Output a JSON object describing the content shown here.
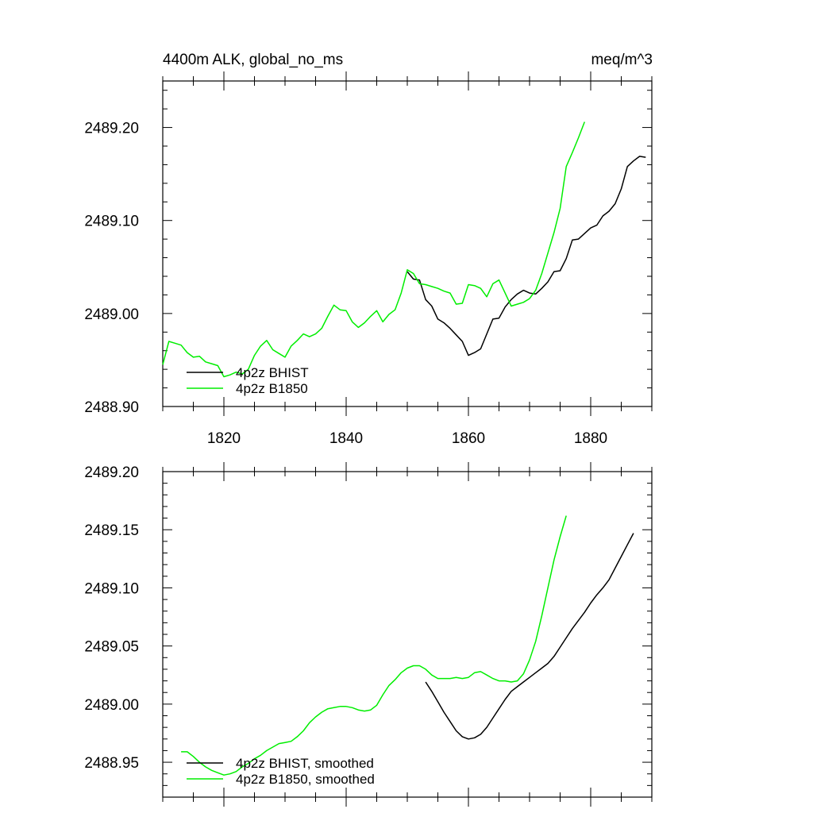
{
  "chart_data": [
    {
      "type": "line",
      "title_left": "4400m ALK, global_no_ms",
      "title_right": "meq/m^3",
      "xlabel": "",
      "ylabel": "",
      "xlim": [
        1810,
        1890
      ],
      "ylim": [
        2488.9,
        2489.25
      ],
      "x_ticks": [
        1820,
        1840,
        1860,
        1880
      ],
      "x_tick_labels": [
        "1820",
        "1840",
        "1860",
        "1880"
      ],
      "y_ticks": [
        2488.9,
        2489.0,
        2489.1,
        2489.2
      ],
      "y_tick_labels": [
        "2488.90",
        "2489.00",
        "2489.10",
        "2489.20"
      ],
      "legend_placement": "bottom-left",
      "series": [
        {
          "name": "4p2z BHIST",
          "color": "#000000",
          "x": [
            1850,
            1851,
            1852,
            1853,
            1854,
            1855,
            1856,
            1857,
            1858,
            1859,
            1860,
            1861,
            1862,
            1863,
            1864,
            1865,
            1866,
            1867,
            1868,
            1869,
            1870,
            1871,
            1872,
            1873,
            1874,
            1875,
            1876,
            1877,
            1878,
            1879,
            1880,
            1881,
            1882,
            1883,
            1884,
            1885,
            1886,
            1887,
            1888,
            1889
          ],
          "values": [
            2489.045,
            2489.037,
            2489.036,
            2489.015,
            2489.008,
            2488.994,
            2488.99,
            2488.984,
            2488.977,
            2488.97,
            2488.955,
            2488.958,
            2488.962,
            2488.978,
            2488.994,
            2488.995,
            2489.007,
            2489.015,
            2489.021,
            2489.025,
            2489.022,
            2489.021,
            2489.027,
            2489.034,
            2489.045,
            2489.046,
            2489.059,
            2489.079,
            2489.08,
            2489.086,
            2489.092,
            2489.095,
            2489.105,
            2489.11,
            2489.118,
            2489.134,
            2489.158,
            2489.164,
            2489.169,
            2489.168
          ]
        },
        {
          "name": "4p2z B1850",
          "color": "#00ee00",
          "x": [
            1810,
            1811,
            1812,
            1813,
            1814,
            1815,
            1816,
            1817,
            1818,
            1819,
            1820,
            1821,
            1822,
            1823,
            1824,
            1825,
            1826,
            1827,
            1828,
            1829,
            1830,
            1831,
            1832,
            1833,
            1834,
            1835,
            1836,
            1837,
            1838,
            1839,
            1840,
            1841,
            1842,
            1843,
            1844,
            1845,
            1846,
            1847,
            1848,
            1849,
            1850,
            1851,
            1852,
            1853,
            1854,
            1855,
            1856,
            1857,
            1858,
            1859,
            1860,
            1861,
            1862,
            1863,
            1864,
            1865,
            1866,
            1867,
            1868,
            1869,
            1870,
            1871,
            1872,
            1873,
            1874,
            1875,
            1876,
            1877,
            1878,
            1879
          ],
          "values": [
            2488.945,
            2488.97,
            2488.968,
            2488.966,
            2488.958,
            2488.953,
            2488.954,
            2488.948,
            2488.946,
            2488.944,
            2488.932,
            2488.934,
            2488.937,
            2488.935,
            2488.94,
            2488.955,
            2488.965,
            2488.971,
            2488.961,
            2488.957,
            2488.953,
            2488.965,
            2488.971,
            2488.978,
            2488.975,
            2488.978,
            2488.984,
            2488.997,
            2489.009,
            2489.004,
            2489.003,
            2488.991,
            2488.985,
            2488.99,
            2488.997,
            2489.003,
            2488.991,
            2488.999,
            2489.004,
            2489.022,
            2489.047,
            2489.043,
            2489.032,
            2489.031,
            2489.029,
            2489.027,
            2489.024,
            2489.022,
            2489.01,
            2489.011,
            2489.031,
            2489.03,
            2489.027,
            2489.018,
            2489.032,
            2489.036,
            2489.022,
            2489.008,
            2489.01,
            2489.012,
            2489.016,
            2489.025,
            2489.043,
            2489.065,
            2489.087,
            2489.113,
            2489.158,
            2489.173,
            2489.189,
            2489.206
          ]
        }
      ]
    },
    {
      "type": "line",
      "title": "",
      "xlabel": "",
      "ylabel": "",
      "xlim": [
        1810,
        1890
      ],
      "ylim": [
        2488.92,
        2489.2
      ],
      "x_ticks": [
        1820,
        1840,
        1860,
        1880
      ],
      "x_tick_labels": [],
      "y_ticks": [
        2488.95,
        2489.0,
        2489.05,
        2489.1,
        2489.15,
        2489.2
      ],
      "y_tick_labels": [
        "2488.95",
        "2489.00",
        "2489.05",
        "2489.10",
        "2489.15",
        "2489.20"
      ],
      "legend_placement": "bottom-left",
      "series": [
        {
          "name": "4p2z BHIST, smoothed",
          "color": "#000000",
          "x": [
            1853,
            1854,
            1855,
            1856,
            1857,
            1858,
            1859,
            1860,
            1861,
            1862,
            1863,
            1864,
            1865,
            1866,
            1867,
            1868,
            1869,
            1870,
            1871,
            1872,
            1873,
            1874,
            1875,
            1876,
            1877,
            1878,
            1879,
            1880,
            1881,
            1882,
            1883,
            1884,
            1885,
            1886,
            1887
          ],
          "values": [
            2489.019,
            2489.011,
            2489.002,
            2488.993,
            2488.985,
            2488.977,
            2488.972,
            2488.97,
            2488.971,
            2488.974,
            2488.98,
            2488.988,
            2488.996,
            2489.004,
            2489.011,
            2489.015,
            2489.019,
            2489.023,
            2489.027,
            2489.031,
            2489.035,
            2489.041,
            2489.049,
            2489.057,
            2489.065,
            2489.072,
            2489.079,
            2489.087,
            2489.094,
            2489.1,
            2489.107,
            2489.117,
            2489.127,
            2489.137,
            2489.147
          ]
        },
        {
          "name": "4p2z B1850, smoothed",
          "color": "#00ee00",
          "x": [
            1813,
            1814,
            1815,
            1816,
            1817,
            1818,
            1819,
            1820,
            1821,
            1822,
            1823,
            1824,
            1825,
            1826,
            1827,
            1828,
            1829,
            1830,
            1831,
            1832,
            1833,
            1834,
            1835,
            1836,
            1837,
            1838,
            1839,
            1840,
            1841,
            1842,
            1843,
            1844,
            1845,
            1846,
            1847,
            1848,
            1849,
            1850,
            1851,
            1852,
            1853,
            1854,
            1855,
            1856,
            1857,
            1858,
            1859,
            1860,
            1861,
            1862,
            1863,
            1864,
            1865,
            1866,
            1867,
            1868,
            1869,
            1870,
            1871,
            1872,
            1873,
            1874,
            1875,
            1876
          ],
          "values": [
            2488.959,
            2488.959,
            2488.955,
            2488.95,
            2488.946,
            2488.943,
            2488.941,
            2488.939,
            2488.94,
            2488.942,
            2488.946,
            2488.949,
            2488.953,
            2488.956,
            2488.96,
            2488.963,
            2488.966,
            2488.967,
            2488.968,
            2488.972,
            2488.977,
            2488.984,
            2488.989,
            2488.993,
            2488.996,
            2488.997,
            2488.998,
            2488.998,
            2488.997,
            2488.995,
            2488.994,
            2488.995,
            2488.999,
            2489.008,
            2489.016,
            2489.021,
            2489.027,
            2489.031,
            2489.033,
            2489.033,
            2489.03,
            2489.025,
            2489.022,
            2489.022,
            2489.022,
            2489.023,
            2489.022,
            2489.023,
            2489.027,
            2489.028,
            2489.025,
            2489.022,
            2489.02,
            2489.02,
            2489.019,
            2489.02,
            2489.026,
            2489.038,
            2489.054,
            2489.076,
            2489.1,
            2489.124,
            2489.144,
            2489.162
          ]
        }
      ]
    }
  ]
}
